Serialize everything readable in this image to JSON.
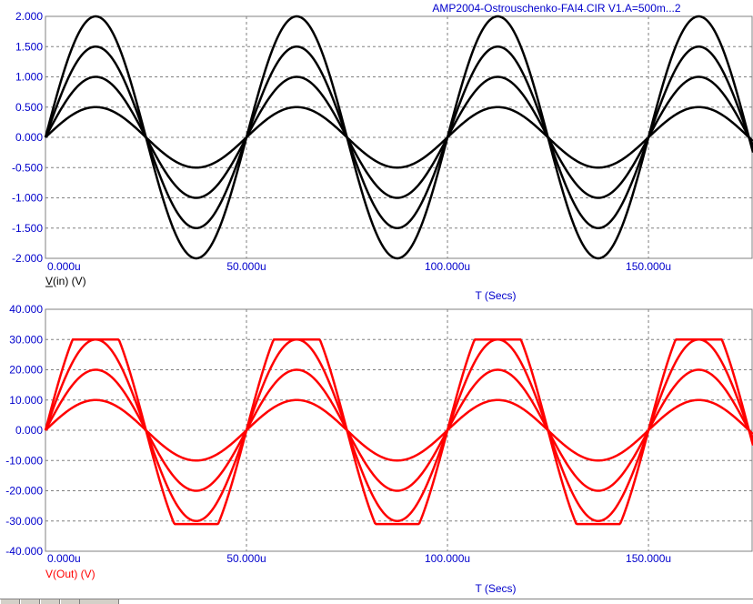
{
  "header": {
    "title": "AMP2004-Ostrouschenko-FAI4.CIR V1.A=500m...2",
    "title_color": "#0000cc"
  },
  "colors": {
    "axis_text": "#0000cc",
    "grid": "#808080",
    "top_trace": "#000000",
    "bottom_trace": "#ff0000"
  },
  "chart_data": [
    {
      "type": "line",
      "x_unit": "s",
      "xlabel": "T (Secs)",
      "ylabel": "V(in) (V)",
      "xlim": [
        0,
        0.000176
      ],
      "ylim": [
        -2,
        2
      ],
      "x_ticks": [
        0,
        5e-05,
        0.0001,
        0.00015
      ],
      "x_tick_labels": [
        "0.000u",
        "50.000u",
        "100.000u",
        "150.000u"
      ],
      "y_ticks": [
        2,
        1.5,
        1,
        0.5,
        0,
        -0.5,
        -1,
        -1.5,
        -2
      ],
      "y_tick_labels": [
        "2.000",
        "1.500",
        "1.000",
        "0.500",
        "0.000",
        "-0.500",
        "-1.000",
        "-1.500",
        "-2.000"
      ],
      "grid": true,
      "waveform": {
        "shape": "sine",
        "period": 5e-05,
        "clip_level": null
      },
      "series": [
        {
          "amplitude": 0.5,
          "color": "#000000"
        },
        {
          "amplitude": 1.0,
          "color": "#000000"
        },
        {
          "amplitude": 1.5,
          "color": "#000000"
        },
        {
          "amplitude": 2.0,
          "color": "#000000"
        }
      ]
    },
    {
      "type": "line",
      "x_unit": "s",
      "xlabel": "T (Secs)",
      "ylabel": "V(Out) (V)",
      "xlim": [
        0,
        0.000176
      ],
      "ylim": [
        -40,
        40
      ],
      "x_ticks": [
        0,
        5e-05,
        0.0001,
        0.00015
      ],
      "x_tick_labels": [
        "0.000u",
        "50.000u",
        "100.000u",
        "150.000u"
      ],
      "y_ticks": [
        40,
        30,
        20,
        10,
        0,
        -10,
        -20,
        -30,
        -40
      ],
      "y_tick_labels": [
        "40.000",
        "30.000",
        "20.000",
        "10.000",
        "0.000",
        "-10.000",
        "-20.000",
        "-30.000",
        "-40.000"
      ],
      "grid": true,
      "waveform": {
        "shape": "sine",
        "period": 5e-05,
        "clip_level": [
          -31,
          30
        ]
      },
      "series": [
        {
          "amplitude": 10,
          "color": "#ff0000"
        },
        {
          "amplitude": 20,
          "color": "#ff0000"
        },
        {
          "amplitude": 30,
          "color": "#ff0000"
        },
        {
          "amplitude": 40,
          "color": "#ff0000"
        }
      ]
    }
  ]
}
